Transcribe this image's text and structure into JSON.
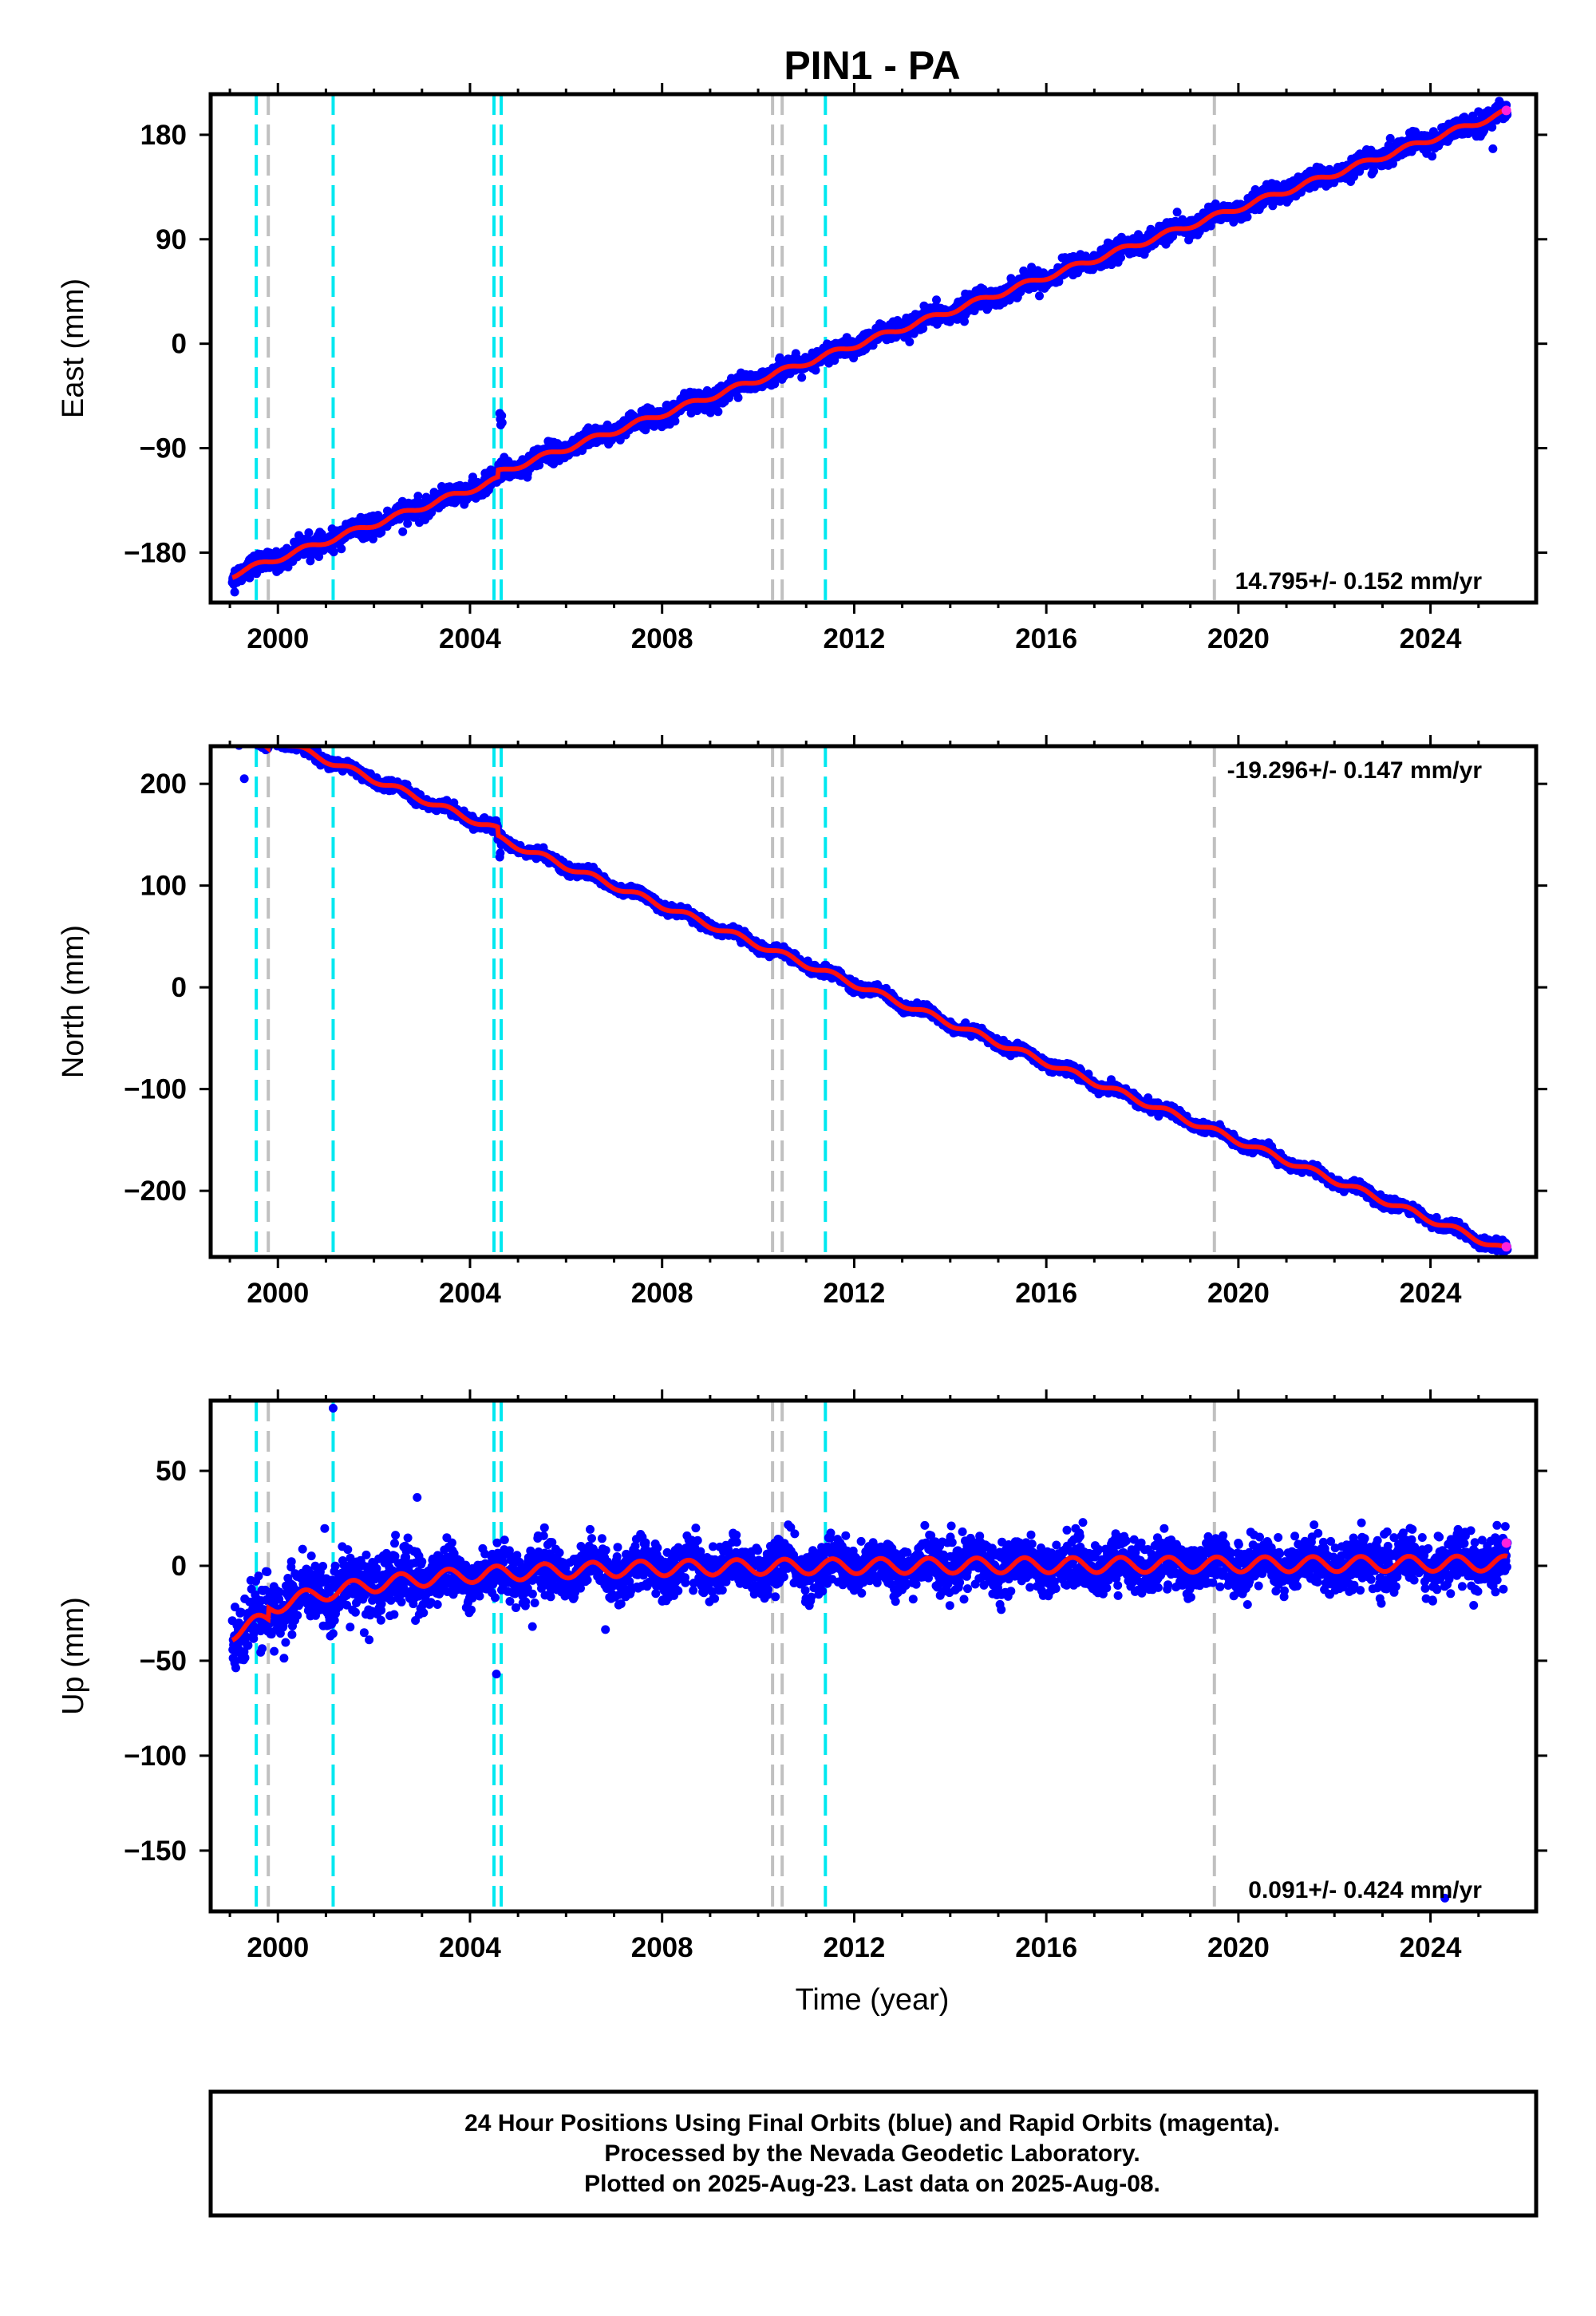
{
  "chart_data": {
    "type": "scatter",
    "title": "PIN1 - PA",
    "x_label": "Time (year)",
    "x_range": [
      1998.6,
      2026.2
    ],
    "x_ticks": [
      2000,
      2004,
      2008,
      2012,
      2016,
      2020,
      2024
    ],
    "x_tick_labels": [
      "2000",
      "2004",
      "2008",
      "2012",
      "2016",
      "2020",
      "2024"
    ],
    "data_start": 1999.05,
    "data_end": 2025.6,
    "grid": false,
    "colors": {
      "final_orbits": "#0000ff",
      "rapid_orbits": "#ff22dd",
      "model": "#ff1111",
      "event_cyan": "#00e8f0",
      "event_gray": "#c0c0c0"
    },
    "cyan_lines_x": [
      1999.55,
      2001.15,
      2004.5,
      2004.65,
      2011.4
    ],
    "gray_lines_x": [
      1999.8,
      2010.3,
      2010.5,
      2019.5
    ],
    "panels": [
      {
        "name": "east",
        "ylabel": "East (mm)",
        "ylim": [
          -223,
          215
        ],
        "y_ticks": [
          180,
          90,
          0,
          -90,
          -180
        ],
        "y_tick_labels": [
          "180",
          "90",
          "0",
          "−90",
          "−180"
        ],
        "rate_label": "14.795+/- 0.152 mm/yr",
        "rate_position": "bottom-right",
        "trend": {
          "t0": 2012.1,
          "y0": 0,
          "rate": 14.795
        },
        "seasonal_amplitude": 2.5,
        "scatter_sd": 4,
        "steps": [
          {
            "x": 2004.58,
            "dy": 6
          }
        ],
        "outliers": [
          {
            "x": 2004.62,
            "y": -60
          },
          {
            "x": 2004.63,
            "y": -65
          },
          {
            "x": 2004.64,
            "y": -70
          },
          {
            "x": 2004.66,
            "y": -62
          },
          {
            "x": 2004.67,
            "y": -68
          },
          {
            "x": 1999.1,
            "y": -214
          },
          {
            "x": 2002.6,
            "y": -162
          },
          {
            "x": 2025.3,
            "y": 168
          },
          {
            "x": 2025.0,
            "y": 200
          }
        ],
        "rapid_points": [
          {
            "x": 2025.58,
            "y": 201
          }
        ]
      },
      {
        "name": "north",
        "ylabel": "North (mm)",
        "ylim": [
          -265,
          237
        ],
        "y_ticks": [
          200,
          100,
          0,
          -100,
          -200
        ],
        "y_tick_labels": [
          "200",
          "100",
          "0",
          "−100",
          "−200"
        ],
        "rate_label": "-19.296+/- 0.147 mm/yr",
        "rate_position": "top-right",
        "trend": {
          "t0": 2011.5,
          "y0": 13,
          "rate": -19.296
        },
        "seasonal_amplitude": 3,
        "scatter_sd": 2.5,
        "steps": [
          {
            "x": 1999.8,
            "dy": 12
          },
          {
            "x": 2004.58,
            "dy": -8
          }
        ],
        "outliers": [
          {
            "x": 2004.62,
            "y": 128
          },
          {
            "x": 2004.63,
            "y": 132
          },
          {
            "x": 2004.65,
            "y": 140
          },
          {
            "x": 1999.3,
            "y": 205
          }
        ],
        "rapid_points": [
          {
            "x": 2025.58,
            "y": -255
          }
        ]
      },
      {
        "name": "up",
        "ylabel": "Up (mm)",
        "ylim": [
          -182,
          87
        ],
        "y_ticks": [
          50,
          0,
          -50,
          -100,
          -150
        ],
        "y_tick_labels": [
          "50",
          "0",
          "−50",
          "−100",
          "−150"
        ],
        "rate_label": "0.091+/- 0.424 mm/yr",
        "rate_position": "bottom-right",
        "trend": {
          "t0": 2012.0,
          "y0": 0,
          "rate": 0.091
        },
        "seasonal_amplitude": 4,
        "scatter_sd": 6.5,
        "early_transient": {
          "start": 1999.05,
          "amplitude": -28,
          "tau": 2.6
        },
        "steps": [
          {
            "x": 1999.8,
            "dy": 6
          }
        ],
        "outliers": [
          {
            "x": 2001.15,
            "y": 83
          },
          {
            "x": 2004.55,
            "y": -57
          },
          {
            "x": 2002.9,
            "y": 36
          },
          {
            "x": 2024.3,
            "y": -175
          },
          {
            "x": 2005.3,
            "y": -32
          },
          {
            "x": 2001.9,
            "y": -39
          }
        ],
        "rapid_points": [
          {
            "x": 2025.58,
            "y": 12
          }
        ]
      }
    ]
  },
  "footer": {
    "line1": "24 Hour Positions Using Final Orbits (blue) and Rapid Orbits (magenta).",
    "line2": "Processed by the Nevada Geodetic Laboratory.",
    "line3": "Plotted on 2025-Aug-23. Last data on 2025-Aug-08."
  }
}
